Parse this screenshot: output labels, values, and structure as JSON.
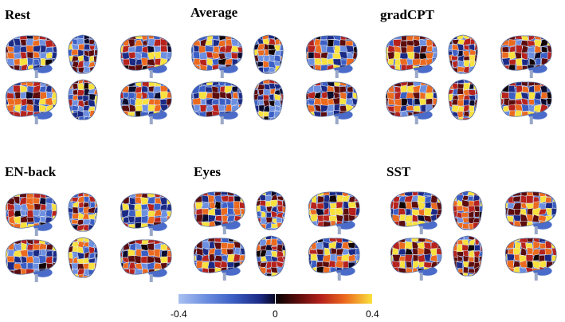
{
  "panels": [
    {
      "id": "rest",
      "title": "Rest"
    },
    {
      "id": "average",
      "title": "Average"
    },
    {
      "id": "gradcpt",
      "title": "gradCPT"
    },
    {
      "id": "enback",
      "title": "EN-back"
    },
    {
      "id": "eyes",
      "title": "Eyes"
    },
    {
      "id": "sst",
      "title": "SST"
    }
  ],
  "colorbar": {
    "min_label": "-0.4",
    "mid_label": "0",
    "max_label": "0.4",
    "colors": [
      "#a9c0f0",
      "#6d8fe0",
      "#3b5ec4",
      "#1b2a85",
      "#0b0b2e",
      "#120404",
      "#5c0c0c",
      "#b7231c",
      "#ec6a1e",
      "#f9e13e"
    ]
  },
  "views": [
    "left-lateral",
    "top",
    "right-lateral",
    "right-medial",
    "bottom",
    "left-medial"
  ]
}
